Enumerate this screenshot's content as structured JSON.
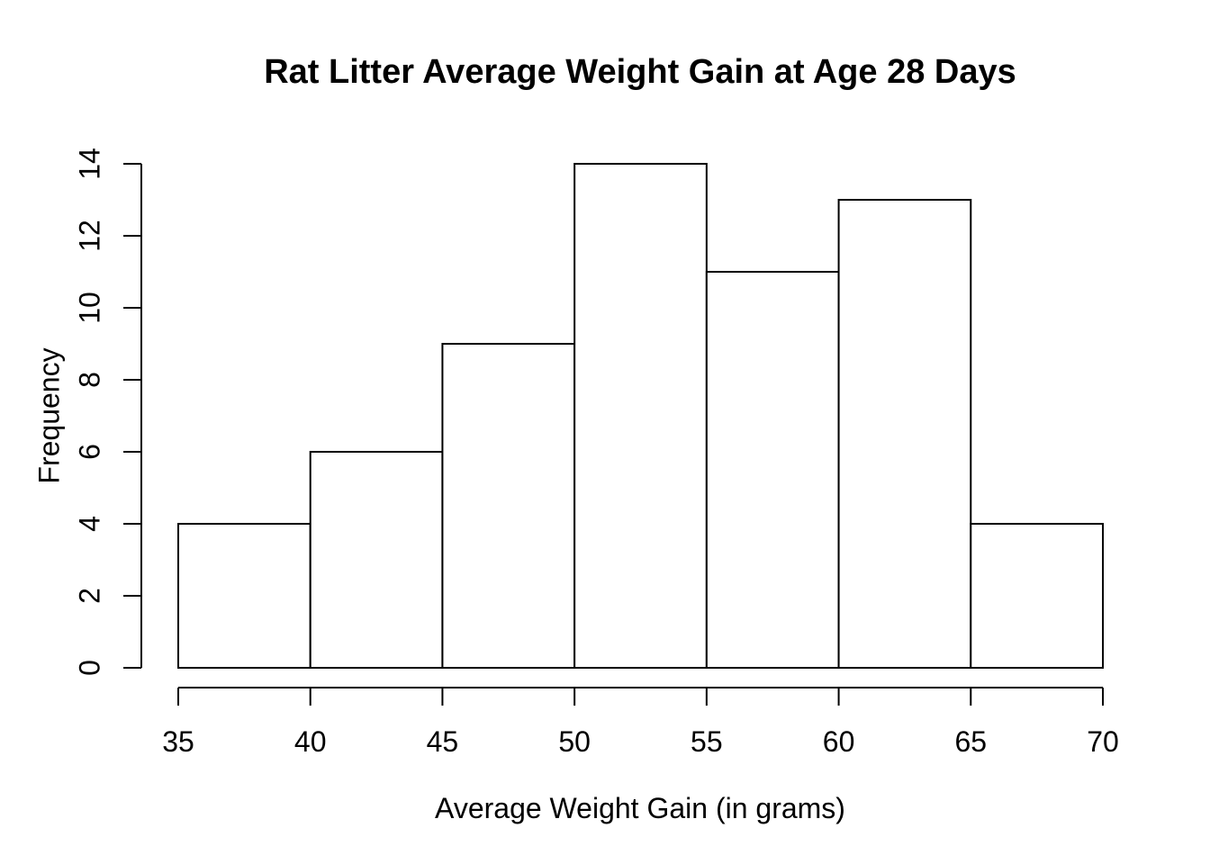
{
  "chart_data": {
    "type": "histogram",
    "title": "Rat Litter Average Weight Gain at Age 28 Days",
    "xlabel": "Average Weight Gain (in grams)",
    "ylabel": "Frequency",
    "bin_width": 5,
    "bin_edges": [
      35,
      40,
      45,
      50,
      55,
      60,
      65,
      70
    ],
    "frequencies": [
      4,
      6,
      9,
      14,
      11,
      13,
      4
    ],
    "bins": [
      {
        "range": "35-40",
        "frequency": 4
      },
      {
        "range": "40-45",
        "frequency": 6
      },
      {
        "range": "45-50",
        "frequency": 9
      },
      {
        "range": "50-55",
        "frequency": 14
      },
      {
        "range": "55-60",
        "frequency": 11
      },
      {
        "range": "60-65",
        "frequency": 13
      },
      {
        "range": "65-70",
        "frequency": 4
      }
    ],
    "x_ticks": [
      35,
      40,
      45,
      50,
      55,
      60,
      65,
      70
    ],
    "y_ticks": [
      0,
      2,
      4,
      6,
      8,
      10,
      12,
      14
    ],
    "xlim": [
      35,
      70
    ],
    "ylim": [
      0,
      14
    ],
    "grid": false,
    "legend": false,
    "bar_fill": "#ffffff",
    "bar_stroke": "#000000",
    "axis_color": "#000000",
    "text_color": "#000000",
    "background": "#ffffff"
  }
}
